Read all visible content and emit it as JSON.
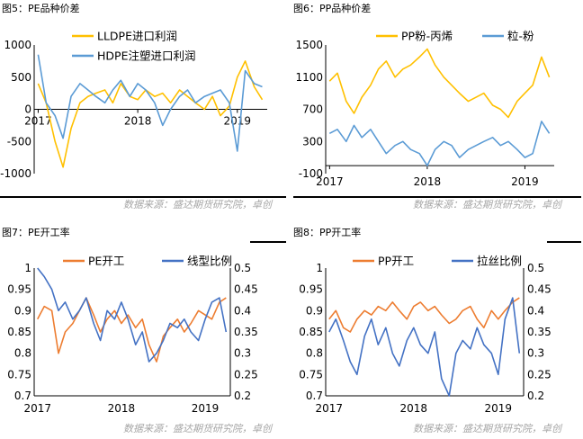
{
  "colors": {
    "orange": "#ed7d31",
    "blue": "#5b9bd5",
    "yellow": "#ffc000",
    "rule": "#000000",
    "source_text": "#a6a6a6"
  },
  "source_note": "数据来源：盛达期货研究院，卓创",
  "chart_data": [
    {
      "type": "line",
      "title": "图5：PE品种价差",
      "ylim": [
        -1000,
        1000
      ],
      "y_ticks": [
        "1000",
        "500",
        "0",
        "-500",
        "-1000"
      ],
      "x_ticks": [
        "2017",
        "2018",
        "2019"
      ],
      "series": [
        {
          "name": "LLDPE进口利润",
          "color": "#ffc000",
          "x": [
            2017.0,
            2017.08,
            2017.17,
            2017.25,
            2017.33,
            2017.42,
            2017.5,
            2017.58,
            2017.67,
            2017.75,
            2017.83,
            2017.92,
            2018.0,
            2018.08,
            2018.17,
            2018.25,
            2018.33,
            2018.42,
            2018.5,
            2018.58,
            2018.67,
            2018.75,
            2018.83,
            2018.92,
            2019.0,
            2019.08,
            2019.17,
            2019.25
          ],
          "values": [
            400,
            100,
            -500,
            -900,
            -300,
            100,
            200,
            250,
            300,
            100,
            400,
            200,
            150,
            300,
            200,
            250,
            100,
            300,
            200,
            100,
            0,
            200,
            -100,
            50,
            500,
            750,
            350,
            150
          ]
        },
        {
          "name": "HDPE注塑进口利润",
          "color": "#5b9bd5",
          "x": [
            2017.0,
            2017.08,
            2017.17,
            2017.25,
            2017.33,
            2017.42,
            2017.5,
            2017.58,
            2017.67,
            2017.75,
            2017.83,
            2017.92,
            2018.0,
            2018.08,
            2018.17,
            2018.25,
            2018.33,
            2018.42,
            2018.5,
            2018.58,
            2018.67,
            2018.75,
            2018.83,
            2018.92,
            2019.0,
            2019.08,
            2019.17,
            2019.25
          ],
          "values": [
            850,
            100,
            -100,
            -450,
            200,
            400,
            300,
            200,
            100,
            300,
            450,
            200,
            400,
            300,
            100,
            -250,
            0,
            200,
            300,
            100,
            200,
            250,
            300,
            100,
            -650,
            600,
            400,
            350
          ]
        }
      ]
    },
    {
      "type": "line",
      "title": "图6：PP品种价差",
      "ylim": [
        -100,
        1500
      ],
      "y_ticks": [
        "1500",
        "1100",
        "700",
        "300",
        "-100"
      ],
      "x_ticks": [
        "2017",
        "2018",
        "2019"
      ],
      "series": [
        {
          "name": "PP粉-丙烯",
          "color": "#ffc000",
          "x": [
            2017.0,
            2017.08,
            2017.17,
            2017.25,
            2017.33,
            2017.42,
            2017.5,
            2017.58,
            2017.67,
            2017.75,
            2017.83,
            2017.92,
            2018.0,
            2018.08,
            2018.17,
            2018.25,
            2018.33,
            2018.42,
            2018.5,
            2018.58,
            2018.67,
            2018.75,
            2018.83,
            2018.92,
            2019.0,
            2019.08,
            2019.17,
            2019.25
          ],
          "values": [
            1050,
            1150,
            800,
            650,
            850,
            1000,
            1200,
            1300,
            1100,
            1200,
            1250,
            1350,
            1450,
            1250,
            1100,
            1000,
            900,
            800,
            850,
            900,
            750,
            700,
            600,
            800,
            900,
            1000,
            1350,
            1100
          ]
        },
        {
          "name": "粒-粉",
          "color": "#5b9bd5",
          "x": [
            2017.0,
            2017.08,
            2017.17,
            2017.25,
            2017.33,
            2017.42,
            2017.5,
            2017.58,
            2017.67,
            2017.75,
            2017.83,
            2017.92,
            2018.0,
            2018.08,
            2018.17,
            2018.25,
            2018.33,
            2018.42,
            2018.5,
            2018.58,
            2018.67,
            2018.75,
            2018.83,
            2018.92,
            2019.0,
            2019.08,
            2019.17,
            2019.25
          ],
          "values": [
            400,
            450,
            300,
            500,
            350,
            450,
            300,
            150,
            250,
            300,
            200,
            150,
            0,
            200,
            300,
            250,
            100,
            200,
            250,
            300,
            350,
            250,
            300,
            200,
            100,
            150,
            550,
            400
          ]
        }
      ]
    },
    {
      "type": "line",
      "title": "图7：PE开工率",
      "ylim": [
        0.7,
        1.0
      ],
      "y2lim": [
        0.2,
        0.5
      ],
      "y_ticks": [
        "1",
        "0.95",
        "0.9",
        "0.85",
        "0.8",
        "0.75",
        "0.7"
      ],
      "y2_ticks": [
        "0.5",
        "0.45",
        "0.4",
        "0.35",
        "0.3",
        "0.25",
        "0.2"
      ],
      "x_ticks": [
        "2017",
        "2018",
        "2019"
      ],
      "series": [
        {
          "name": "PE开工",
          "color": "#ed7d31",
          "axis": "left",
          "x": [
            2017.0,
            2017.08,
            2017.17,
            2017.25,
            2017.33,
            2017.42,
            2017.5,
            2017.58,
            2017.67,
            2017.75,
            2017.83,
            2017.92,
            2018.0,
            2018.08,
            2018.17,
            2018.25,
            2018.33,
            2018.42,
            2018.5,
            2018.58,
            2018.67,
            2018.75,
            2018.83,
            2018.92,
            2019.0,
            2019.08,
            2019.17,
            2019.25
          ],
          "values": [
            0.88,
            0.91,
            0.9,
            0.8,
            0.85,
            0.87,
            0.9,
            0.93,
            0.89,
            0.85,
            0.88,
            0.9,
            0.87,
            0.89,
            0.86,
            0.88,
            0.82,
            0.78,
            0.84,
            0.86,
            0.88,
            0.85,
            0.87,
            0.9,
            0.89,
            0.88,
            0.92,
            0.93
          ]
        },
        {
          "name": "线型比例",
          "color": "#4472c4",
          "axis": "right",
          "x": [
            2017.0,
            2017.08,
            2017.17,
            2017.25,
            2017.33,
            2017.42,
            2017.5,
            2017.58,
            2017.67,
            2017.75,
            2017.83,
            2017.92,
            2018.0,
            2018.08,
            2018.17,
            2018.25,
            2018.33,
            2018.42,
            2018.5,
            2018.58,
            2018.67,
            2018.75,
            2018.83,
            2018.92,
            2019.0,
            2019.08,
            2019.17,
            2019.25
          ],
          "values": [
            0.5,
            0.48,
            0.45,
            0.4,
            0.42,
            0.38,
            0.4,
            0.43,
            0.37,
            0.33,
            0.4,
            0.38,
            0.42,
            0.38,
            0.32,
            0.35,
            0.28,
            0.3,
            0.33,
            0.37,
            0.36,
            0.38,
            0.35,
            0.33,
            0.38,
            0.42,
            0.43,
            0.35
          ]
        }
      ]
    },
    {
      "type": "line",
      "title": "图8：PP开工率",
      "ylim": [
        0.7,
        1.0
      ],
      "y2lim": [
        0.2,
        0.5
      ],
      "y_ticks": [
        "1",
        "0.95",
        "0.9",
        "0.85",
        "0.8",
        "0.75",
        "0.7"
      ],
      "y2_ticks": [
        "0.5",
        "0.45",
        "0.4",
        "0.35",
        "0.3",
        "0.25",
        "0.2"
      ],
      "x_ticks": [
        "2017",
        "2018",
        "2019"
      ],
      "series": [
        {
          "name": "PP开工",
          "color": "#ed7d31",
          "axis": "left",
          "x": [
            2017.0,
            2017.08,
            2017.17,
            2017.25,
            2017.33,
            2017.42,
            2017.5,
            2017.58,
            2017.67,
            2017.75,
            2017.83,
            2017.92,
            2018.0,
            2018.08,
            2018.17,
            2018.25,
            2018.33,
            2018.42,
            2018.5,
            2018.58,
            2018.67,
            2018.75,
            2018.83,
            2018.92,
            2019.0,
            2019.08,
            2019.17,
            2019.25
          ],
          "values": [
            0.88,
            0.9,
            0.86,
            0.85,
            0.88,
            0.9,
            0.89,
            0.91,
            0.9,
            0.92,
            0.9,
            0.88,
            0.91,
            0.92,
            0.9,
            0.91,
            0.89,
            0.87,
            0.88,
            0.9,
            0.91,
            0.88,
            0.86,
            0.9,
            0.88,
            0.9,
            0.92,
            0.93
          ]
        },
        {
          "name": "拉丝比例",
          "color": "#4472c4",
          "axis": "right",
          "x": [
            2017.0,
            2017.08,
            2017.17,
            2017.25,
            2017.33,
            2017.42,
            2017.5,
            2017.58,
            2017.67,
            2017.75,
            2017.83,
            2017.92,
            2018.0,
            2018.08,
            2018.17,
            2018.25,
            2018.33,
            2018.42,
            2018.5,
            2018.58,
            2018.67,
            2018.75,
            2018.83,
            2018.92,
            2019.0,
            2019.08,
            2019.17,
            2019.25
          ],
          "values": [
            0.35,
            0.38,
            0.33,
            0.28,
            0.25,
            0.34,
            0.38,
            0.32,
            0.36,
            0.3,
            0.27,
            0.33,
            0.36,
            0.32,
            0.3,
            0.35,
            0.24,
            0.2,
            0.3,
            0.33,
            0.31,
            0.36,
            0.32,
            0.3,
            0.25,
            0.38,
            0.43,
            0.3
          ]
        }
      ]
    }
  ]
}
